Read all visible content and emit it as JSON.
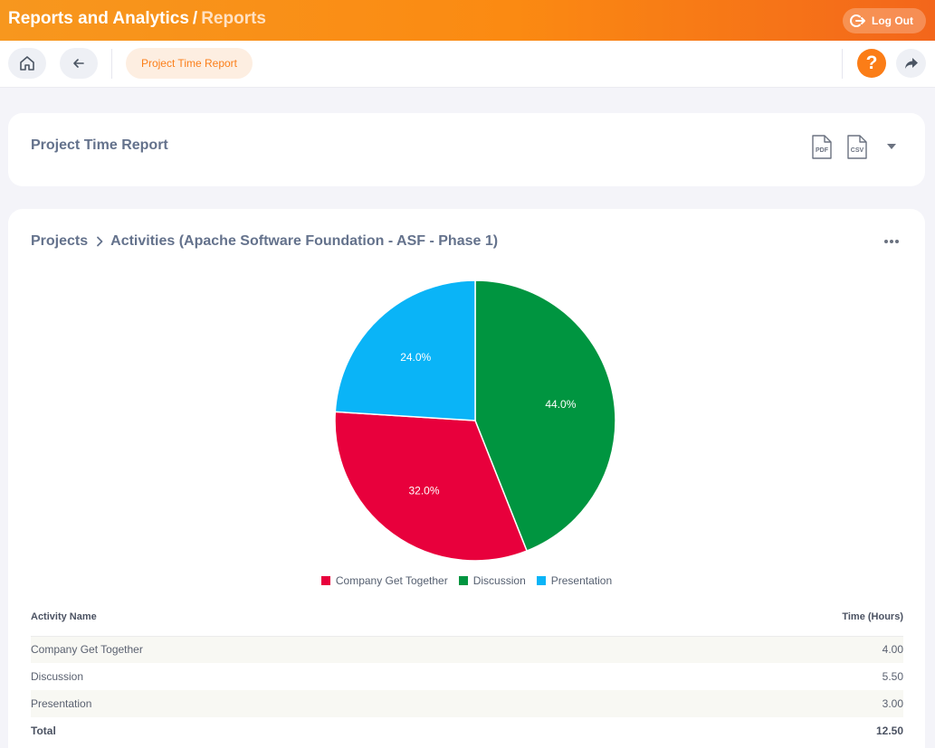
{
  "header": {
    "title": "Reports and Analytics",
    "separator": "/",
    "crumb": "Reports",
    "logout_label": "Log Out"
  },
  "subnav": {
    "active_tab": "Project Time Report",
    "help_glyph": "?"
  },
  "report_card": {
    "title": "Project Time Report",
    "pdf_label": "PDF",
    "csv_label": "CSV"
  },
  "breadcrumb": {
    "root": "Projects",
    "current": "Activities (Apache Software Foundation - ASF - Phase 1)"
  },
  "colors": {
    "accent": "#fb7d17",
    "company": "#e8003c",
    "discussion": "#009540",
    "presentation": "#0ab4f7"
  },
  "chart_data": {
    "type": "pie",
    "categories": [
      "Company Get Together",
      "Discussion",
      "Presentation"
    ],
    "values": [
      4.0,
      5.5,
      3.0
    ],
    "percent_labels": [
      "32.0%",
      "44.0%",
      "24.0%"
    ],
    "colors": [
      "#e8003c",
      "#009540",
      "#0ab4f7"
    ],
    "legend": "bottom"
  },
  "table": {
    "headers": [
      "Activity Name",
      "Time (Hours)"
    ],
    "rows": [
      [
        "Company Get Together",
        "4.00"
      ],
      [
        "Discussion",
        "5.50"
      ],
      [
        "Presentation",
        "3.00"
      ]
    ],
    "total_label": "Total",
    "total_value": "12.50"
  },
  "icons": {
    "home": "home-icon",
    "back": "arrow-left-icon",
    "logout": "logout-icon",
    "help": "help-icon",
    "share": "share-icon",
    "more": "more-horizontal-icon"
  }
}
